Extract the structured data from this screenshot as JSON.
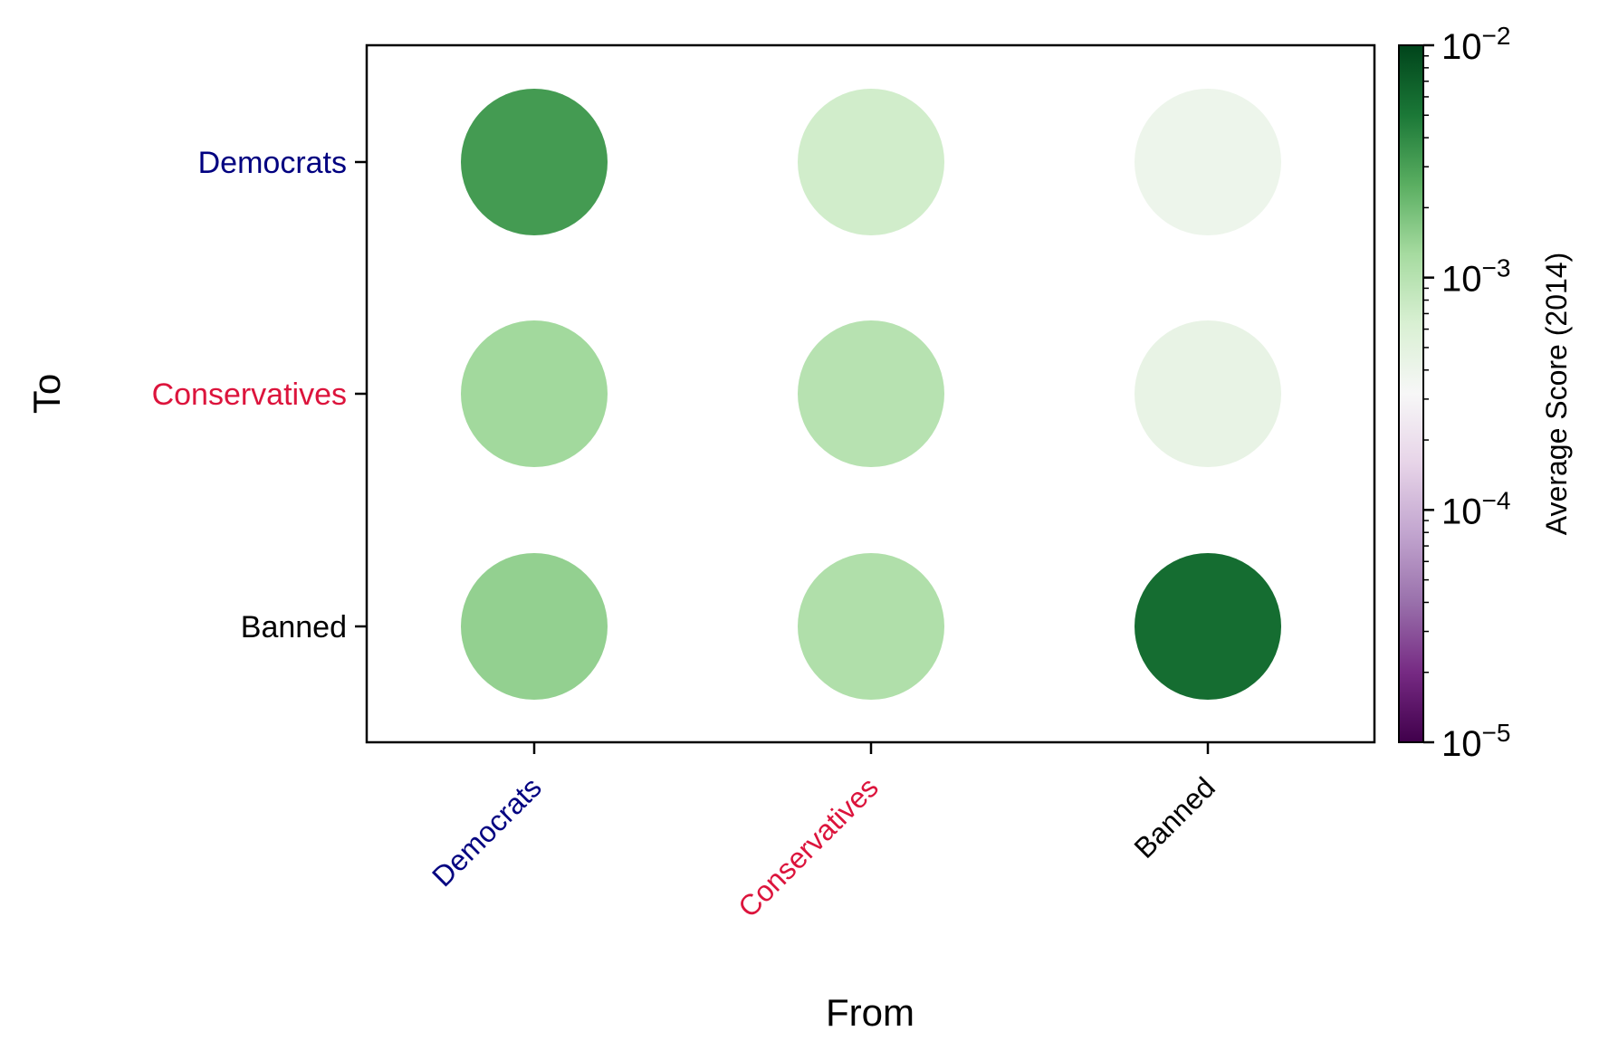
{
  "chart_data": {
    "type": "scatter",
    "subtype": "bubble-matrix",
    "xlabel": "From",
    "ylabel": "To",
    "x_categories": [
      {
        "label": "Democrats",
        "color": "#000080"
      },
      {
        "label": "Conservatives",
        "color": "#dc143c"
      },
      {
        "label": "Banned",
        "color": "#000000"
      }
    ],
    "y_categories": [
      {
        "label": "Democrats",
        "color": "#000080"
      },
      {
        "label": "Conservatives",
        "color": "#dc143c"
      },
      {
        "label": "Banned",
        "color": "#000000"
      }
    ],
    "points": [
      {
        "from": "Democrats",
        "to": "Democrats",
        "value": 0.0032
      },
      {
        "from": "Conservatives",
        "to": "Democrats",
        "value": 0.0007
      },
      {
        "from": "Banned",
        "to": "Democrats",
        "value": 0.0004
      },
      {
        "from": "Democrats",
        "to": "Conservatives",
        "value": 0.0013
      },
      {
        "from": "Conservatives",
        "to": "Conservatives",
        "value": 0.001
      },
      {
        "from": "Banned",
        "to": "Conservatives",
        "value": 0.00045
      },
      {
        "from": "Democrats",
        "to": "Banned",
        "value": 0.0015
      },
      {
        "from": "Conservatives",
        "to": "Banned",
        "value": 0.0011
      },
      {
        "from": "Banned",
        "to": "Banned",
        "value": 0.0058
      }
    ],
    "colorbar": {
      "label": "Average Score (2014)",
      "scale": "log",
      "range": [
        1e-05,
        0.01
      ],
      "ticks": [
        {
          "value": 1e-05,
          "base": "10",
          "exp": "−5"
        },
        {
          "value": 0.0001,
          "base": "10",
          "exp": "−4"
        },
        {
          "value": 0.001,
          "base": "10",
          "exp": "−3"
        },
        {
          "value": 0.01,
          "base": "10",
          "exp": "−2"
        }
      ],
      "colormap": "PRGn",
      "colormap_stops": [
        "#40004b",
        "#762a83",
        "#9970ab",
        "#c2a5cf",
        "#e7d4e8",
        "#f7f7f7",
        "#d9f0d3",
        "#a6dba0",
        "#5aae61",
        "#1b7837",
        "#00441b"
      ]
    },
    "grid": false,
    "legend": "none"
  }
}
